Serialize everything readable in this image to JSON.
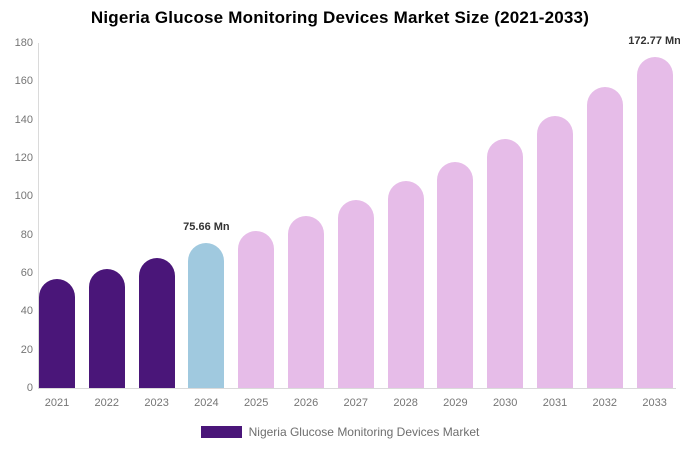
{
  "chart_data": {
    "type": "bar",
    "title": "Nigeria Glucose Monitoring Devices Market Size (2021-2033)",
    "xlabel": "",
    "ylabel": "",
    "unit": "Mn",
    "categories": [
      "2021",
      "2022",
      "2023",
      "2024",
      "2025",
      "2026",
      "2027",
      "2028",
      "2029",
      "2030",
      "2031",
      "2032",
      "2033"
    ],
    "values": [
      57,
      62,
      68,
      75.66,
      82,
      90,
      98,
      108,
      118,
      130,
      142,
      157,
      172.77
    ],
    "bar_segments": [
      "past",
      "past",
      "past",
      "current",
      "forecast",
      "forecast",
      "forecast",
      "forecast",
      "forecast",
      "forecast",
      "forecast",
      "forecast",
      "forecast"
    ],
    "segment_colors": {
      "past": "#4a1679",
      "current": "#a0c9df",
      "forecast": "#e6bce8"
    },
    "ylim": [
      0,
      180
    ],
    "yticks": [
      0,
      20,
      40,
      60,
      80,
      100,
      120,
      140,
      160,
      180
    ],
    "grid": false,
    "legend_position": "bottom",
    "annotations": [
      {
        "category": "2024",
        "text": "75.66 Mn"
      },
      {
        "category": "2033",
        "text": "172.77 Mn"
      }
    ]
  },
  "legend": {
    "label": "Nigeria Glucose Monitoring Devices Market",
    "swatch_color": "#4a1679"
  },
  "colors": {
    "axis_line": "#dadada",
    "axis_text": "#757575",
    "value_label_text": "#333333",
    "title_text": "#000000",
    "background": "#ffffff"
  }
}
